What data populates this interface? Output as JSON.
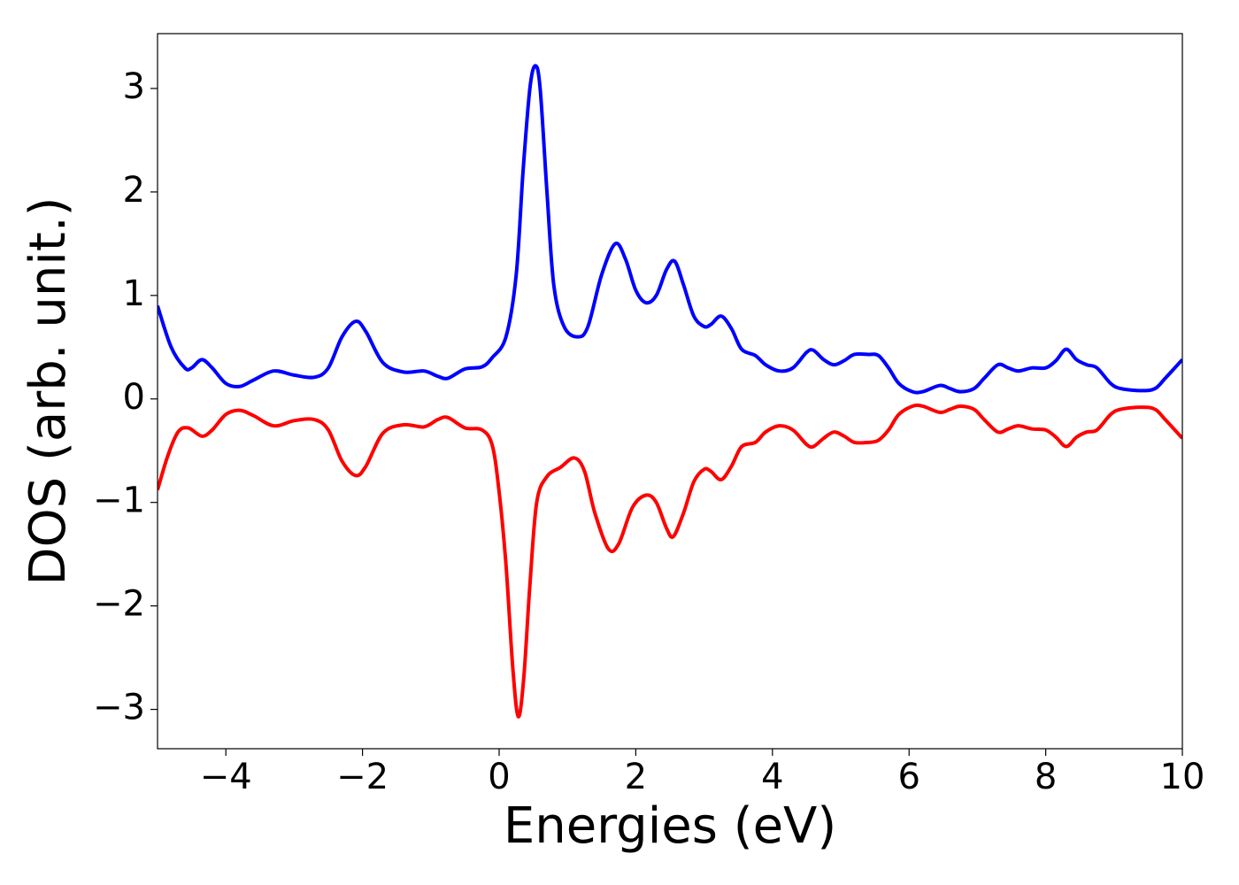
{
  "chart_data": {
    "type": "line",
    "x_label": "Energies (eV)",
    "y_label": "DOS (arb. unit.)",
    "xlim": [
      -5,
      10
    ],
    "ylim": [
      -3.38,
      3.53
    ],
    "xticks": [
      {
        "value": -4,
        "label": "−4"
      },
      {
        "value": -2,
        "label": "−2"
      },
      0,
      2,
      4,
      6,
      8,
      10
    ],
    "yticks": [
      {
        "value": -3,
        "label": "−3"
      },
      {
        "value": -2,
        "label": "−2"
      },
      {
        "value": -1,
        "label": "−1"
      },
      0,
      1,
      2,
      3
    ],
    "grid": false,
    "series": [
      {
        "color": "#0000ff",
        "x": [
          -5,
          -4.8,
          -4.6,
          -4.5,
          -4.35,
          -4.2,
          -4.0,
          -3.8,
          -3.6,
          -3.3,
          -3.0,
          -2.7,
          -2.5,
          -2.3,
          -2.1,
          -1.95,
          -1.7,
          -1.4,
          -1.1,
          -0.9,
          -0.75,
          -0.5,
          -0.25,
          -0.1,
          0.1,
          0.25,
          0.35,
          0.45,
          0.53,
          0.6,
          0.7,
          0.8,
          0.95,
          1.15,
          1.3,
          1.5,
          1.7,
          1.85,
          2.0,
          2.15,
          2.3,
          2.45,
          2.57,
          2.7,
          2.85,
          3.0,
          3.1,
          3.25,
          3.4,
          3.55,
          3.75,
          3.9,
          4.1,
          4.3,
          4.5,
          4.6,
          4.75,
          4.9,
          5.05,
          5.2,
          5.4,
          5.55,
          5.7,
          5.85,
          6.05,
          6.2,
          6.45,
          6.6,
          6.75,
          6.95,
          7.1,
          7.3,
          7.45,
          7.6,
          7.8,
          8.0,
          8.15,
          8.3,
          8.45,
          8.6,
          8.75,
          8.95,
          9.1,
          9.4,
          9.6,
          9.75,
          10.0
        ],
        "values": [
          0.9,
          0.5,
          0.3,
          0.3,
          0.38,
          0.3,
          0.15,
          0.12,
          0.18,
          0.27,
          0.23,
          0.21,
          0.3,
          0.6,
          0.75,
          0.65,
          0.35,
          0.26,
          0.27,
          0.22,
          0.2,
          0.29,
          0.31,
          0.4,
          0.6,
          1.2,
          2.2,
          3.0,
          3.22,
          3.0,
          2.0,
          1.1,
          0.7,
          0.6,
          0.7,
          1.2,
          1.5,
          1.35,
          1.05,
          0.93,
          1.0,
          1.25,
          1.33,
          1.1,
          0.8,
          0.7,
          0.72,
          0.8,
          0.68,
          0.48,
          0.42,
          0.33,
          0.27,
          0.3,
          0.45,
          0.47,
          0.38,
          0.33,
          0.37,
          0.43,
          0.43,
          0.42,
          0.3,
          0.15,
          0.07,
          0.07,
          0.13,
          0.1,
          0.07,
          0.1,
          0.2,
          0.33,
          0.3,
          0.27,
          0.3,
          0.3,
          0.37,
          0.48,
          0.38,
          0.33,
          0.3,
          0.15,
          0.1,
          0.08,
          0.1,
          0.2,
          0.38
        ]
      },
      {
        "color": "#ff0000",
        "x": [
          -5,
          -4.85,
          -4.7,
          -4.55,
          -4.35,
          -4.2,
          -4.0,
          -3.8,
          -3.6,
          -3.3,
          -3.0,
          -2.7,
          -2.5,
          -2.3,
          -2.1,
          -1.95,
          -1.7,
          -1.4,
          -1.1,
          -0.9,
          -0.75,
          -0.5,
          -0.25,
          -0.1,
          0.0,
          0.1,
          0.2,
          0.28,
          0.36,
          0.45,
          0.55,
          0.7,
          0.9,
          1.1,
          1.25,
          1.4,
          1.6,
          1.75,
          1.95,
          2.15,
          2.3,
          2.45,
          2.55,
          2.7,
          2.85,
          3.0,
          3.1,
          3.25,
          3.4,
          3.55,
          3.75,
          3.9,
          4.1,
          4.3,
          4.5,
          4.6,
          4.75,
          4.9,
          5.05,
          5.2,
          5.4,
          5.55,
          5.7,
          5.85,
          6.05,
          6.2,
          6.45,
          6.6,
          6.75,
          6.95,
          7.1,
          7.3,
          7.45,
          7.6,
          7.8,
          8.0,
          8.15,
          8.3,
          8.45,
          8.6,
          8.75,
          8.95,
          9.1,
          9.4,
          9.6,
          9.75,
          10.0
        ],
        "values": [
          -0.88,
          -0.55,
          -0.32,
          -0.28,
          -0.36,
          -0.3,
          -0.15,
          -0.11,
          -0.16,
          -0.26,
          -0.21,
          -0.2,
          -0.3,
          -0.6,
          -0.74,
          -0.65,
          -0.33,
          -0.25,
          -0.27,
          -0.2,
          -0.18,
          -0.28,
          -0.3,
          -0.45,
          -0.9,
          -1.6,
          -2.6,
          -3.07,
          -2.7,
          -1.8,
          -1.0,
          -0.75,
          -0.66,
          -0.57,
          -0.7,
          -1.1,
          -1.45,
          -1.4,
          -1.05,
          -0.93,
          -1.0,
          -1.25,
          -1.33,
          -1.1,
          -0.8,
          -0.68,
          -0.7,
          -0.78,
          -0.65,
          -0.46,
          -0.42,
          -0.32,
          -0.26,
          -0.3,
          -0.44,
          -0.46,
          -0.38,
          -0.32,
          -0.36,
          -0.42,
          -0.42,
          -0.4,
          -0.3,
          -0.15,
          -0.07,
          -0.07,
          -0.13,
          -0.1,
          -0.07,
          -0.1,
          -0.2,
          -0.32,
          -0.29,
          -0.26,
          -0.29,
          -0.3,
          -0.37,
          -0.46,
          -0.37,
          -0.32,
          -0.3,
          -0.15,
          -0.1,
          -0.08,
          -0.1,
          -0.2,
          -0.38
        ]
      }
    ]
  }
}
